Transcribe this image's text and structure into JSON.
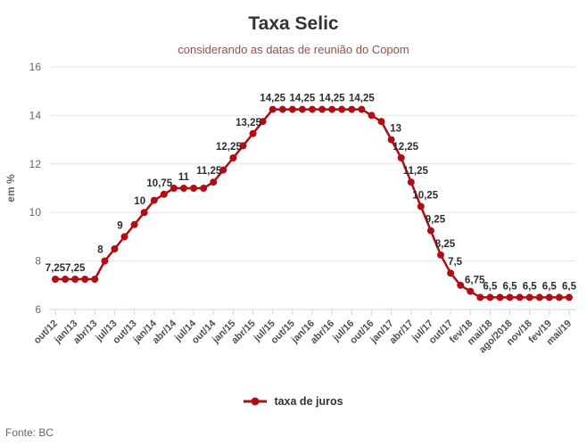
{
  "header": {
    "title": "Taxa Selic",
    "subtitle": "considerando as datas de reunião do Copom"
  },
  "legend": {
    "label": "taxa de juros"
  },
  "source": {
    "text": "Fonte: BC"
  },
  "chart_data": {
    "type": "line",
    "title": "Taxa Selic",
    "subtitle": "considerando as datas de reunião do Copom",
    "series_name": "taxa de juros",
    "ylabel": "em %",
    "ylim": [
      6,
      16
    ],
    "yticks": [
      6,
      8,
      10,
      12,
      14,
      16
    ],
    "grid": true,
    "legend_position": "bottom",
    "x_tick_labels": [
      "out/12",
      "jan/13",
      "abr/13",
      "jul/13",
      "out/13",
      "jan/14",
      "abr/14",
      "jul/14",
      "out/14",
      "jan/15",
      "abr/15",
      "jul/15",
      "out/15",
      "jan/16",
      "abr/16",
      "jul/16",
      "out/16",
      "jan/17",
      "abr/17",
      "jul/17",
      "out/17",
      "fev/18",
      "mai/18",
      "ago/2018",
      "nov/18",
      "fev/19",
      "mai/19"
    ],
    "tick_every": 2,
    "values": [
      7.25,
      7.25,
      7.25,
      7.25,
      7.25,
      8,
      8.5,
      9,
      9.5,
      10,
      10.5,
      10.75,
      11,
      11,
      11,
      11,
      11.25,
      11.75,
      12.25,
      12.75,
      13.25,
      13.75,
      14.25,
      14.25,
      14.25,
      14.25,
      14.25,
      14.25,
      14.25,
      14.25,
      14.25,
      14.25,
      14,
      13.75,
      13,
      12.25,
      11.25,
      10.25,
      9.25,
      8.25,
      7.5,
      7,
      6.75,
      6.5,
      6.5,
      6.5,
      6.5,
      6.5,
      6.5,
      6.5,
      6.5,
      6.5,
      6.5
    ],
    "point_labels": [
      "7,25",
      "",
      "7,25",
      "",
      "",
      "8",
      "",
      "9",
      "",
      "10",
      "",
      "10,75",
      "",
      "11",
      "",
      "",
      "11,25",
      "",
      "12,25",
      "",
      "13,25",
      "",
      "14,25",
      "",
      "",
      "14,25",
      "",
      "",
      "14,25",
      "",
      "",
      "14,25",
      "",
      "",
      "13",
      "12,25",
      "11,25",
      "10,25",
      "9,25",
      "8,25",
      "7,5",
      "",
      "6,75",
      "",
      "6,5",
      "",
      "6,5",
      "",
      "6,5",
      "",
      "6,5",
      "",
      "6,5"
    ],
    "colors": {
      "line": "#b00e14",
      "point_label": "#2d2d2d",
      "axis_label": "#666666",
      "x_label": "#4d4d4d",
      "grid": "#e6e6e6",
      "tick": "#ccd6eb",
      "title": "#333333",
      "subtitle": "#96504b",
      "legend_text": "#333333"
    }
  }
}
